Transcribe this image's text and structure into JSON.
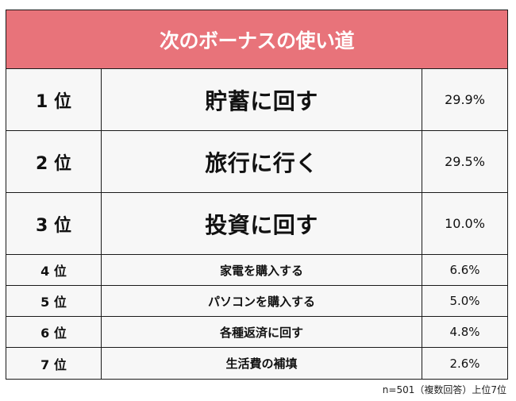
{
  "title": "次のボーナスの使い道",
  "rows": [
    {
      "rank": "1 位",
      "item": "貯蓄に回す",
      "percent": "29.9%"
    },
    {
      "rank": "2 位",
      "item": "旅行に行く",
      "percent": "29.5%"
    },
    {
      "rank": "3 位",
      "item": "投資に回す",
      "percent": "10.0%"
    },
    {
      "rank": "4 位",
      "item": "家電を購入する",
      "percent": "6.6%"
    },
    {
      "rank": "5 位",
      "item": "パソコンを購入する",
      "percent": "5.0%"
    },
    {
      "rank": "6 位",
      "item": "各種返済に回す",
      "percent": "4.8%"
    },
    {
      "rank": "7 位",
      "item": "生活費の補填",
      "percent": "2.6%"
    }
  ],
  "footnote": "n=501（複数回答）上位7位",
  "colors": {
    "header_bg": "#e8737a",
    "header_text": "#ffffff",
    "cell_bg": "#f7f7f7",
    "border": "#1a1a1a"
  }
}
